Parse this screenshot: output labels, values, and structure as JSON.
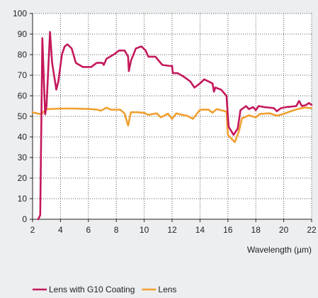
{
  "chart_data": {
    "type": "line",
    "title": "",
    "xlabel": "Wavelength (µm)",
    "ylabel": "",
    "xlim": [
      2,
      22
    ],
    "ylim": [
      0,
      100
    ],
    "x_ticks": [
      2,
      4,
      6,
      8,
      10,
      12,
      14,
      16,
      18,
      20,
      22
    ],
    "y_ticks": [
      0,
      10,
      20,
      30,
      40,
      50,
      60,
      70,
      80,
      90,
      100
    ],
    "grid": true,
    "legend_position": "bottom-left",
    "series": [
      {
        "name": "Lens with G10 Coating",
        "color": "#c4185c",
        "points": [
          [
            2.4,
            0
          ],
          [
            2.55,
            2
          ],
          [
            2.7,
            88
          ],
          [
            2.9,
            51
          ],
          [
            3.0,
            55
          ],
          [
            3.25,
            91
          ],
          [
            3.4,
            76
          ],
          [
            3.7,
            63
          ],
          [
            3.85,
            67
          ],
          [
            4.1,
            80
          ],
          [
            4.3,
            84
          ],
          [
            4.5,
            85
          ],
          [
            4.8,
            83
          ],
          [
            5.1,
            76
          ],
          [
            5.6,
            74
          ],
          [
            6.2,
            74
          ],
          [
            6.6,
            76
          ],
          [
            7.0,
            76
          ],
          [
            7.1,
            75
          ],
          [
            7.3,
            78
          ],
          [
            7.8,
            80
          ],
          [
            8.2,
            82
          ],
          [
            8.6,
            82
          ],
          [
            8.85,
            79
          ],
          [
            8.9,
            72
          ],
          [
            9.05,
            77
          ],
          [
            9.4,
            83
          ],
          [
            9.8,
            84
          ],
          [
            10.1,
            82
          ],
          [
            10.3,
            79
          ],
          [
            10.8,
            79
          ],
          [
            11.3,
            75
          ],
          [
            11.8,
            74.5
          ],
          [
            12.0,
            74.5
          ],
          [
            12.05,
            71
          ],
          [
            12.4,
            71
          ],
          [
            12.9,
            69
          ],
          [
            13.3,
            67
          ],
          [
            13.6,
            64
          ],
          [
            14.0,
            66
          ],
          [
            14.3,
            68
          ],
          [
            14.6,
            67
          ],
          [
            14.9,
            66
          ],
          [
            15.0,
            62
          ],
          [
            15.1,
            64
          ],
          [
            15.5,
            63
          ],
          [
            15.9,
            60
          ],
          [
            16.05,
            45
          ],
          [
            16.4,
            41
          ],
          [
            16.7,
            44
          ],
          [
            16.9,
            53
          ],
          [
            17.3,
            55
          ],
          [
            17.5,
            53.5
          ],
          [
            17.8,
            54.5
          ],
          [
            18.0,
            53
          ],
          [
            18.2,
            55
          ],
          [
            18.6,
            54.5
          ],
          [
            19.3,
            54
          ],
          [
            19.5,
            52.5
          ],
          [
            19.8,
            54
          ],
          [
            20.2,
            54.5
          ],
          [
            20.9,
            55
          ],
          [
            21.1,
            57.5
          ],
          [
            21.3,
            55
          ],
          [
            21.6,
            55.5
          ],
          [
            21.8,
            56.5
          ],
          [
            22.0,
            55.5
          ]
        ]
      },
      {
        "name": "Lens",
        "color": "#f0a030",
        "points": [
          [
            2.0,
            52
          ],
          [
            2.6,
            51
          ],
          [
            3.0,
            53.5
          ],
          [
            4.0,
            53.8
          ],
          [
            5.0,
            53.8
          ],
          [
            6.0,
            53.6
          ],
          [
            6.6,
            53.3
          ],
          [
            6.9,
            52.8
          ],
          [
            7.3,
            54.2
          ],
          [
            7.6,
            53.3
          ],
          [
            8.3,
            53.2
          ],
          [
            8.6,
            51.3
          ],
          [
            8.85,
            45.5
          ],
          [
            9.05,
            52
          ],
          [
            9.5,
            52
          ],
          [
            10.0,
            51.7
          ],
          [
            10.3,
            50.7
          ],
          [
            10.9,
            51.5
          ],
          [
            11.2,
            49.5
          ],
          [
            11.7,
            51.3
          ],
          [
            12.0,
            48.8
          ],
          [
            12.3,
            51.5
          ],
          [
            12.7,
            50.8
          ],
          [
            13.1,
            50.2
          ],
          [
            13.5,
            48.8
          ],
          [
            14.0,
            53.2
          ],
          [
            14.6,
            53.3
          ],
          [
            14.9,
            51.8
          ],
          [
            15.2,
            53.5
          ],
          [
            15.9,
            52.3
          ],
          [
            16.0,
            41
          ],
          [
            16.5,
            37.5
          ],
          [
            16.8,
            43
          ],
          [
            17.0,
            49
          ],
          [
            17.5,
            50.5
          ],
          [
            18.0,
            49.5
          ],
          [
            18.3,
            51.2
          ],
          [
            19.0,
            51.5
          ],
          [
            19.5,
            50.3
          ],
          [
            19.9,
            51
          ],
          [
            20.5,
            52.5
          ],
          [
            21.0,
            53.5
          ],
          [
            21.5,
            54.3
          ],
          [
            22.0,
            54
          ]
        ]
      }
    ]
  }
}
